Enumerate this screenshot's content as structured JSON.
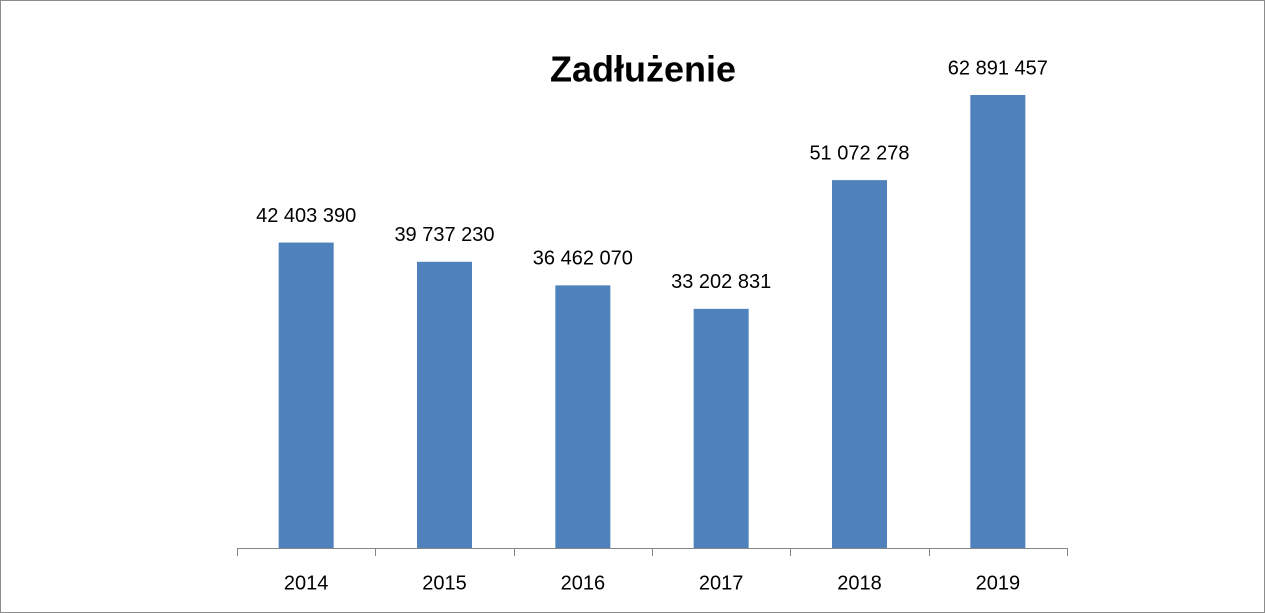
{
  "chart_data": {
    "type": "bar",
    "title": "Zadłużenie",
    "categories": [
      "2014",
      "2015",
      "2016",
      "2017",
      "2018",
      "2019"
    ],
    "values": [
      42403390,
      39737230,
      36462070,
      33202831,
      51072278,
      62891457
    ],
    "value_labels": [
      "42 403 390",
      "39 737 230",
      "36 462 070",
      "33 202 831",
      "51 072 278",
      "62 891 457"
    ],
    "color": "#4f81bd"
  }
}
